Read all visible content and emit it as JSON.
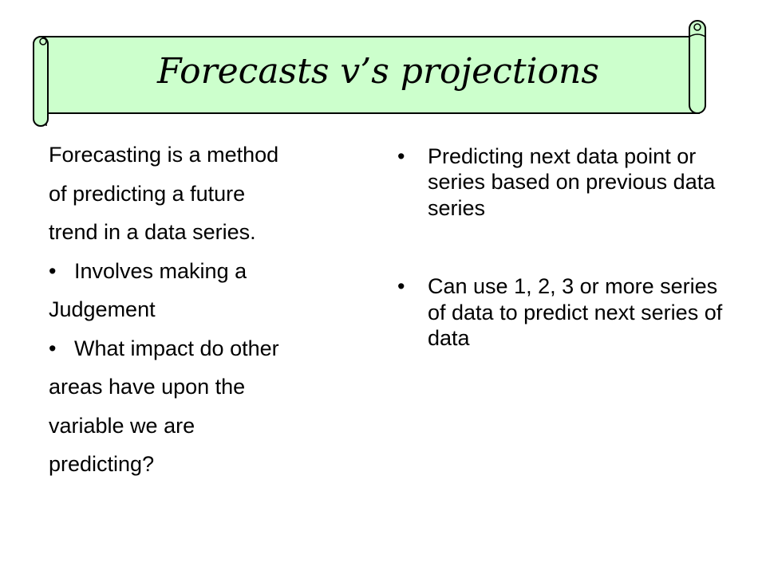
{
  "slide": {
    "title": "Forecasts v’s projections",
    "banner_color": "#ccffcc",
    "left": {
      "lines": [
        {
          "text": "Forecasting is a method",
          "bullet": false
        },
        {
          "text": "of predicting a future",
          "bullet": false
        },
        {
          "text": "trend in a data series.",
          "bullet": false
        },
        {
          "text": "Involves making a",
          "bullet": true
        },
        {
          "text": "Judgement",
          "bullet": false
        },
        {
          "text": "What impact do other",
          "bullet": true
        },
        {
          "text": "areas have upon the",
          "bullet": false
        },
        {
          "text": "variable we are",
          "bullet": false
        },
        {
          "text": "predicting?",
          "bullet": false
        }
      ]
    },
    "right": {
      "bullets": [
        "Predicting next data point or series based on previous data series",
        "Can use 1, 2, 3 or more series of data to predict next series of data"
      ]
    }
  }
}
